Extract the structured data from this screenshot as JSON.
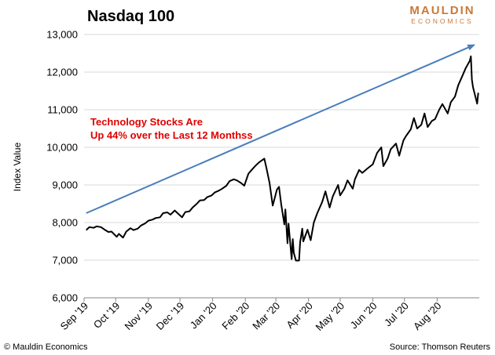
{
  "brand": {
    "line1": "MAULDIN",
    "line2": "ECONOMICS",
    "color": "#c8793a"
  },
  "footer": {
    "copyright": "© Mauldin Economics",
    "source": "Source: Thomson Reuters"
  },
  "chart_data": {
    "type": "line",
    "title": "Nasdaq 100",
    "ylabel": "Index Value",
    "xlabel": "",
    "ylim": [
      6000,
      13000
    ],
    "yticks": [
      6000,
      7000,
      8000,
      9000,
      10000,
      11000,
      12000,
      13000
    ],
    "ytick_labels": [
      "6,000",
      "7,000",
      "8,000",
      "9,000",
      "10,000",
      "11,000",
      "12,000",
      "13,000"
    ],
    "xtick_labels": [
      "Sep '19",
      "Oct '19",
      "Nov '19",
      "Dec '19",
      "Jan '20",
      "Feb '20",
      "Mar '20",
      "Apr '20",
      "May '20",
      "Jun '20",
      "Jul '20",
      "Aug '20"
    ],
    "x_domain": [
      "2019-09-01",
      "2020-09-10"
    ],
    "x_ticks": [
      "2019-09-01",
      "2019-10-01",
      "2019-11-01",
      "2019-12-01",
      "2020-01-01",
      "2020-02-01",
      "2020-03-01",
      "2020-04-01",
      "2020-05-01",
      "2020-06-01",
      "2020-07-01",
      "2020-08-01"
    ],
    "grid": "horizontal",
    "annotation": {
      "lines": [
        "Technology Stocks Are",
        "Up 44% over the Last  12 Monthss"
      ],
      "color": "#e00000"
    },
    "trend_arrow": {
      "from": [
        "2019-09-03",
        8250
      ],
      "to": [
        "2020-09-05",
        12720
      ],
      "color": "#4a7ebb"
    },
    "series": [
      {
        "color": "#000000",
        "points": [
          [
            "2019-09-03",
            7800
          ],
          [
            "2019-09-06",
            7880
          ],
          [
            "2019-09-10",
            7860
          ],
          [
            "2019-09-13",
            7900
          ],
          [
            "2019-09-17",
            7880
          ],
          [
            "2019-09-20",
            7820
          ],
          [
            "2019-09-24",
            7750
          ],
          [
            "2019-09-27",
            7760
          ],
          [
            "2019-10-02",
            7620
          ],
          [
            "2019-10-04",
            7700
          ],
          [
            "2019-10-08",
            7600
          ],
          [
            "2019-10-11",
            7760
          ],
          [
            "2019-10-15",
            7850
          ],
          [
            "2019-10-18",
            7800
          ],
          [
            "2019-10-22",
            7840
          ],
          [
            "2019-10-25",
            7920
          ],
          [
            "2019-10-29",
            7980
          ],
          [
            "2019-11-01",
            8050
          ],
          [
            "2019-11-05",
            8080
          ],
          [
            "2019-11-08",
            8120
          ],
          [
            "2019-11-12",
            8140
          ],
          [
            "2019-11-15",
            8250
          ],
          [
            "2019-11-19",
            8270
          ],
          [
            "2019-11-22",
            8210
          ],
          [
            "2019-11-26",
            8320
          ],
          [
            "2019-12-03",
            8140
          ],
          [
            "2019-12-06",
            8280
          ],
          [
            "2019-12-10",
            8300
          ],
          [
            "2019-12-13",
            8400
          ],
          [
            "2019-12-17",
            8500
          ],
          [
            "2019-12-20",
            8590
          ],
          [
            "2019-12-24",
            8600
          ],
          [
            "2019-12-27",
            8680
          ],
          [
            "2019-12-31",
            8720
          ],
          [
            "2020-01-03",
            8800
          ],
          [
            "2020-01-07",
            8850
          ],
          [
            "2020-01-10",
            8900
          ],
          [
            "2020-01-14",
            8980
          ],
          [
            "2020-01-17",
            9100
          ],
          [
            "2020-01-21",
            9150
          ],
          [
            "2020-01-24",
            9120
          ],
          [
            "2020-01-28",
            9050
          ],
          [
            "2020-01-31",
            8980
          ],
          [
            "2020-02-04",
            9300
          ],
          [
            "2020-02-07",
            9400
          ],
          [
            "2020-02-11",
            9520
          ],
          [
            "2020-02-14",
            9600
          ],
          [
            "2020-02-19",
            9700
          ],
          [
            "2020-02-21",
            9450
          ],
          [
            "2020-02-24",
            9050
          ],
          [
            "2020-02-27",
            8450
          ],
          [
            "2020-03-02",
            8880
          ],
          [
            "2020-03-04",
            8950
          ],
          [
            "2020-03-06",
            8500
          ],
          [
            "2020-03-09",
            7950
          ],
          [
            "2020-03-10",
            8350
          ],
          [
            "2020-03-12",
            7450
          ],
          [
            "2020-03-13",
            7970
          ],
          [
            "2020-03-16",
            7030
          ],
          [
            "2020-03-17",
            7560
          ],
          [
            "2020-03-18",
            7200
          ],
          [
            "2020-03-20",
            6990
          ],
          [
            "2020-03-23",
            6990
          ],
          [
            "2020-03-24",
            7480
          ],
          [
            "2020-03-26",
            7840
          ],
          [
            "2020-03-27",
            7500
          ],
          [
            "2020-03-31",
            7810
          ],
          [
            "2020-04-03",
            7530
          ],
          [
            "2020-04-06",
            8000
          ],
          [
            "2020-04-09",
            8230
          ],
          [
            "2020-04-14",
            8550
          ],
          [
            "2020-04-17",
            8830
          ],
          [
            "2020-04-21",
            8400
          ],
          [
            "2020-04-24",
            8700
          ],
          [
            "2020-04-29",
            9000
          ],
          [
            "2020-05-01",
            8720
          ],
          [
            "2020-05-05",
            8900
          ],
          [
            "2020-05-08",
            9120
          ],
          [
            "2020-05-13",
            8900
          ],
          [
            "2020-05-15",
            9150
          ],
          [
            "2020-05-19",
            9400
          ],
          [
            "2020-05-22",
            9320
          ],
          [
            "2020-05-27",
            9440
          ],
          [
            "2020-06-01",
            9550
          ],
          [
            "2020-06-05",
            9850
          ],
          [
            "2020-06-09",
            10000
          ],
          [
            "2020-06-11",
            9500
          ],
          [
            "2020-06-15",
            9700
          ],
          [
            "2020-06-18",
            9950
          ],
          [
            "2020-06-23",
            10100
          ],
          [
            "2020-06-26",
            9780
          ],
          [
            "2020-06-30",
            10180
          ],
          [
            "2020-07-02",
            10280
          ],
          [
            "2020-07-07",
            10480
          ],
          [
            "2020-07-10",
            10780
          ],
          [
            "2020-07-13",
            10500
          ],
          [
            "2020-07-17",
            10600
          ],
          [
            "2020-07-20",
            10900
          ],
          [
            "2020-07-23",
            10540
          ],
          [
            "2020-07-27",
            10700
          ],
          [
            "2020-07-30",
            10750
          ],
          [
            "2020-08-03",
            11000
          ],
          [
            "2020-08-06",
            11150
          ],
          [
            "2020-08-11",
            10900
          ],
          [
            "2020-08-14",
            11200
          ],
          [
            "2020-08-18",
            11350
          ],
          [
            "2020-08-21",
            11650
          ],
          [
            "2020-08-25",
            11900
          ],
          [
            "2020-08-28",
            12100
          ],
          [
            "2020-09-01",
            12300
          ],
          [
            "2020-09-02",
            12420
          ],
          [
            "2020-09-03",
            11800
          ],
          [
            "2020-09-04",
            11600
          ],
          [
            "2020-09-08",
            11160
          ],
          [
            "2020-09-09",
            11450
          ]
        ]
      }
    ]
  }
}
